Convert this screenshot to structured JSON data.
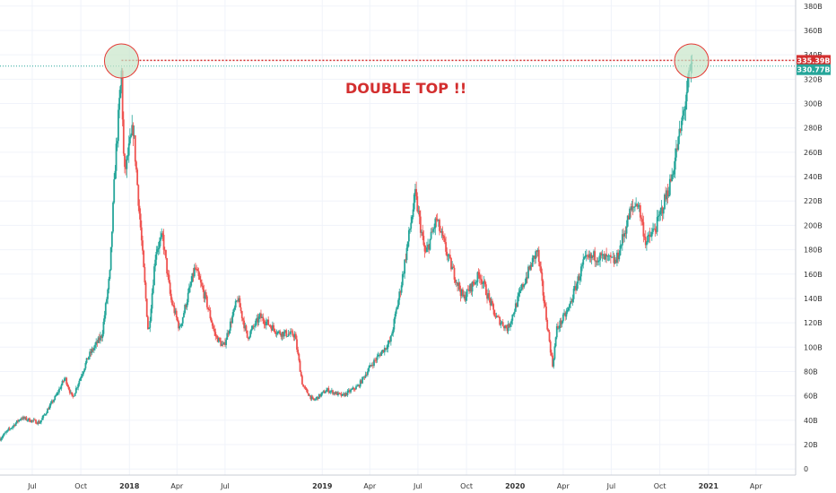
{
  "chart_data": {
    "type": "candlestick",
    "title": "",
    "xlabel": "",
    "ylabel": "",
    "ylim": [
      -5,
      385
    ],
    "y_unit": "B",
    "y_ticks": [
      0,
      20,
      40,
      60,
      80,
      100,
      120,
      140,
      160,
      180,
      200,
      220,
      240,
      260,
      280,
      300,
      320,
      340,
      360,
      380
    ],
    "y_tick_labels": [
      "0",
      "20B",
      "40B",
      "60B",
      "80B",
      "100B",
      "120B",
      "140B",
      "160B",
      "180B",
      "200B",
      "220B",
      "240B",
      "260B",
      "280B",
      "300B",
      "320B",
      "340B",
      "360B",
      "380B"
    ],
    "x_range": [
      "2017-05-01",
      "2021-06-15"
    ],
    "x_ticks": [
      {
        "label": "Jul",
        "date": "2017-07-01"
      },
      {
        "label": "Oct",
        "date": "2017-10-01"
      },
      {
        "label": "2018",
        "date": "2018-01-01"
      },
      {
        "label": "Apr",
        "date": "2018-04-01"
      },
      {
        "label": "Jul",
        "date": "2018-07-01"
      },
      {
        "label": "2019",
        "date": "2019-01-01"
      },
      {
        "label": "Apr",
        "date": "2019-04-01"
      },
      {
        "label": "Jul",
        "date": "2019-07-01"
      },
      {
        "label": "Oct",
        "date": "2019-10-01"
      },
      {
        "label": "2020",
        "date": "2020-01-01"
      },
      {
        "label": "Apr",
        "date": "2020-04-01"
      },
      {
        "label": "Jul",
        "date": "2020-07-01"
      },
      {
        "label": "Oct",
        "date": "2020-10-01"
      },
      {
        "label": "2021",
        "date": "2021-01-01"
      },
      {
        "label": "Apr",
        "date": "2021-04-01"
      }
    ],
    "price_anchors": [
      [
        "2017-05-01",
        25
      ],
      [
        "2017-06-10",
        42
      ],
      [
        "2017-07-15",
        38
      ],
      [
        "2017-08-15",
        60
      ],
      [
        "2017-09-01",
        75
      ],
      [
        "2017-09-15",
        58
      ],
      [
        "2017-10-15",
        92
      ],
      [
        "2017-11-10",
        110
      ],
      [
        "2017-11-25",
        160
      ],
      [
        "2017-12-05",
        250
      ],
      [
        "2017-12-17",
        325
      ],
      [
        "2017-12-22",
        240
      ],
      [
        "2017-12-28",
        255
      ],
      [
        "2018-01-08",
        280
      ],
      [
        "2018-01-20",
        210
      ],
      [
        "2018-02-06",
        110
      ],
      [
        "2018-02-20",
        180
      ],
      [
        "2018-03-05",
        190
      ],
      [
        "2018-03-20",
        140
      ],
      [
        "2018-04-06",
        115
      ],
      [
        "2018-05-05",
        165
      ],
      [
        "2018-05-25",
        140
      ],
      [
        "2018-06-12",
        110
      ],
      [
        "2018-06-28",
        100
      ],
      [
        "2018-07-25",
        140
      ],
      [
        "2018-08-12",
        108
      ],
      [
        "2018-09-05",
        125
      ],
      [
        "2018-10-10",
        112
      ],
      [
        "2018-11-10",
        110
      ],
      [
        "2018-11-25",
        68
      ],
      [
        "2018-12-15",
        56
      ],
      [
        "2019-01-10",
        65
      ],
      [
        "2019-02-08",
        60
      ],
      [
        "2019-03-10",
        68
      ],
      [
        "2019-04-03",
        85
      ],
      [
        "2019-05-10",
        105
      ],
      [
        "2019-05-30",
        150
      ],
      [
        "2019-06-26",
        225
      ],
      [
        "2019-07-15",
        175
      ],
      [
        "2019-08-05",
        205
      ],
      [
        "2019-08-30",
        170
      ],
      [
        "2019-09-25",
        140
      ],
      [
        "2019-10-26",
        160
      ],
      [
        "2019-11-25",
        125
      ],
      [
        "2019-12-18",
        115
      ],
      [
        "2020-01-15",
        150
      ],
      [
        "2020-02-12",
        180
      ],
      [
        "2020-03-12",
        85
      ],
      [
        "2020-03-20",
        115
      ],
      [
        "2020-04-10",
        130
      ],
      [
        "2020-05-10",
        170
      ],
      [
        "2020-06-01",
        175
      ],
      [
        "2020-07-10",
        170
      ],
      [
        "2020-08-05",
        210
      ],
      [
        "2020-08-20",
        220
      ],
      [
        "2020-09-05",
        185
      ],
      [
        "2020-09-25",
        200
      ],
      [
        "2020-10-21",
        235
      ],
      [
        "2020-11-10",
        280
      ],
      [
        "2020-11-25",
        320
      ],
      [
        "2020-12-01",
        330.77
      ]
    ],
    "resistance_level": 335.39,
    "resistance_label": "335.39B",
    "current_price": 330.77,
    "current_label": "330.77B",
    "annotation": "DOUBLE TOP !!",
    "highlight_circles": [
      {
        "date": "2017-12-17",
        "value": 335
      },
      {
        "date": "2020-11-30",
        "value": 335
      }
    ],
    "grid": true,
    "colors": {
      "up": "#26a69a",
      "down": "#ef5350",
      "resistance": "#d32f2f",
      "current": "#26a69a",
      "annotation": "#d32f2f",
      "circle_fill": "#c8e6c9",
      "circle_stroke": "#e53935"
    }
  }
}
